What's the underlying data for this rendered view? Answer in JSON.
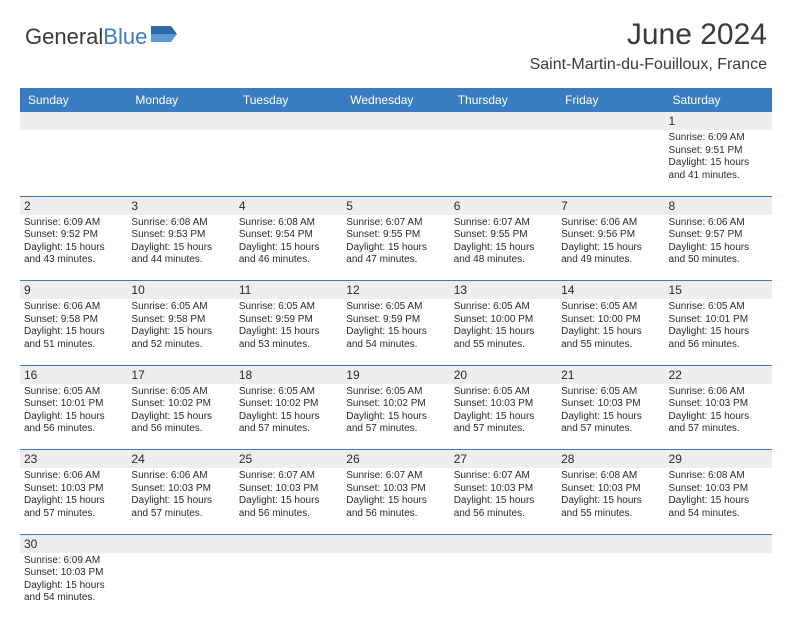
{
  "logo": {
    "text1": "General",
    "text2": "Blue"
  },
  "title": "June 2024",
  "location": "Saint-Martin-du-Fouilloux, France",
  "colors": {
    "header_bg": "#3a7cc0",
    "header_text": "#ffffff",
    "grey_row": "#eeeeee",
    "text": "#2a2a2a"
  },
  "dayNames": [
    "Sunday",
    "Monday",
    "Tuesday",
    "Wednesday",
    "Thursday",
    "Friday",
    "Saturday"
  ],
  "weeks": [
    [
      null,
      null,
      null,
      null,
      null,
      null,
      {
        "n": "1",
        "sr": "Sunrise: 6:09 AM",
        "ss": "Sunset: 9:51 PM",
        "d1": "Daylight: 15 hours",
        "d2": "and 41 minutes."
      }
    ],
    [
      {
        "n": "2",
        "sr": "Sunrise: 6:09 AM",
        "ss": "Sunset: 9:52 PM",
        "d1": "Daylight: 15 hours",
        "d2": "and 43 minutes."
      },
      {
        "n": "3",
        "sr": "Sunrise: 6:08 AM",
        "ss": "Sunset: 9:53 PM",
        "d1": "Daylight: 15 hours",
        "d2": "and 44 minutes."
      },
      {
        "n": "4",
        "sr": "Sunrise: 6:08 AM",
        "ss": "Sunset: 9:54 PM",
        "d1": "Daylight: 15 hours",
        "d2": "and 46 minutes."
      },
      {
        "n": "5",
        "sr": "Sunrise: 6:07 AM",
        "ss": "Sunset: 9:55 PM",
        "d1": "Daylight: 15 hours",
        "d2": "and 47 minutes."
      },
      {
        "n": "6",
        "sr": "Sunrise: 6:07 AM",
        "ss": "Sunset: 9:55 PM",
        "d1": "Daylight: 15 hours",
        "d2": "and 48 minutes."
      },
      {
        "n": "7",
        "sr": "Sunrise: 6:06 AM",
        "ss": "Sunset: 9:56 PM",
        "d1": "Daylight: 15 hours",
        "d2": "and 49 minutes."
      },
      {
        "n": "8",
        "sr": "Sunrise: 6:06 AM",
        "ss": "Sunset: 9:57 PM",
        "d1": "Daylight: 15 hours",
        "d2": "and 50 minutes."
      }
    ],
    [
      {
        "n": "9",
        "sr": "Sunrise: 6:06 AM",
        "ss": "Sunset: 9:58 PM",
        "d1": "Daylight: 15 hours",
        "d2": "and 51 minutes."
      },
      {
        "n": "10",
        "sr": "Sunrise: 6:05 AM",
        "ss": "Sunset: 9:58 PM",
        "d1": "Daylight: 15 hours",
        "d2": "and 52 minutes."
      },
      {
        "n": "11",
        "sr": "Sunrise: 6:05 AM",
        "ss": "Sunset: 9:59 PM",
        "d1": "Daylight: 15 hours",
        "d2": "and 53 minutes."
      },
      {
        "n": "12",
        "sr": "Sunrise: 6:05 AM",
        "ss": "Sunset: 9:59 PM",
        "d1": "Daylight: 15 hours",
        "d2": "and 54 minutes."
      },
      {
        "n": "13",
        "sr": "Sunrise: 6:05 AM",
        "ss": "Sunset: 10:00 PM",
        "d1": "Daylight: 15 hours",
        "d2": "and 55 minutes."
      },
      {
        "n": "14",
        "sr": "Sunrise: 6:05 AM",
        "ss": "Sunset: 10:00 PM",
        "d1": "Daylight: 15 hours",
        "d2": "and 55 minutes."
      },
      {
        "n": "15",
        "sr": "Sunrise: 6:05 AM",
        "ss": "Sunset: 10:01 PM",
        "d1": "Daylight: 15 hours",
        "d2": "and 56 minutes."
      }
    ],
    [
      {
        "n": "16",
        "sr": "Sunrise: 6:05 AM",
        "ss": "Sunset: 10:01 PM",
        "d1": "Daylight: 15 hours",
        "d2": "and 56 minutes."
      },
      {
        "n": "17",
        "sr": "Sunrise: 6:05 AM",
        "ss": "Sunset: 10:02 PM",
        "d1": "Daylight: 15 hours",
        "d2": "and 56 minutes."
      },
      {
        "n": "18",
        "sr": "Sunrise: 6:05 AM",
        "ss": "Sunset: 10:02 PM",
        "d1": "Daylight: 15 hours",
        "d2": "and 57 minutes."
      },
      {
        "n": "19",
        "sr": "Sunrise: 6:05 AM",
        "ss": "Sunset: 10:02 PM",
        "d1": "Daylight: 15 hours",
        "d2": "and 57 minutes."
      },
      {
        "n": "20",
        "sr": "Sunrise: 6:05 AM",
        "ss": "Sunset: 10:03 PM",
        "d1": "Daylight: 15 hours",
        "d2": "and 57 minutes."
      },
      {
        "n": "21",
        "sr": "Sunrise: 6:05 AM",
        "ss": "Sunset: 10:03 PM",
        "d1": "Daylight: 15 hours",
        "d2": "and 57 minutes."
      },
      {
        "n": "22",
        "sr": "Sunrise: 6:06 AM",
        "ss": "Sunset: 10:03 PM",
        "d1": "Daylight: 15 hours",
        "d2": "and 57 minutes."
      }
    ],
    [
      {
        "n": "23",
        "sr": "Sunrise: 6:06 AM",
        "ss": "Sunset: 10:03 PM",
        "d1": "Daylight: 15 hours",
        "d2": "and 57 minutes."
      },
      {
        "n": "24",
        "sr": "Sunrise: 6:06 AM",
        "ss": "Sunset: 10:03 PM",
        "d1": "Daylight: 15 hours",
        "d2": "and 57 minutes."
      },
      {
        "n": "25",
        "sr": "Sunrise: 6:07 AM",
        "ss": "Sunset: 10:03 PM",
        "d1": "Daylight: 15 hours",
        "d2": "and 56 minutes."
      },
      {
        "n": "26",
        "sr": "Sunrise: 6:07 AM",
        "ss": "Sunset: 10:03 PM",
        "d1": "Daylight: 15 hours",
        "d2": "and 56 minutes."
      },
      {
        "n": "27",
        "sr": "Sunrise: 6:07 AM",
        "ss": "Sunset: 10:03 PM",
        "d1": "Daylight: 15 hours",
        "d2": "and 56 minutes."
      },
      {
        "n": "28",
        "sr": "Sunrise: 6:08 AM",
        "ss": "Sunset: 10:03 PM",
        "d1": "Daylight: 15 hours",
        "d2": "and 55 minutes."
      },
      {
        "n": "29",
        "sr": "Sunrise: 6:08 AM",
        "ss": "Sunset: 10:03 PM",
        "d1": "Daylight: 15 hours",
        "d2": "and 54 minutes."
      }
    ],
    [
      {
        "n": "30",
        "sr": "Sunrise: 6:09 AM",
        "ss": "Sunset: 10:03 PM",
        "d1": "Daylight: 15 hours",
        "d2": "and 54 minutes."
      },
      null,
      null,
      null,
      null,
      null,
      null
    ]
  ]
}
